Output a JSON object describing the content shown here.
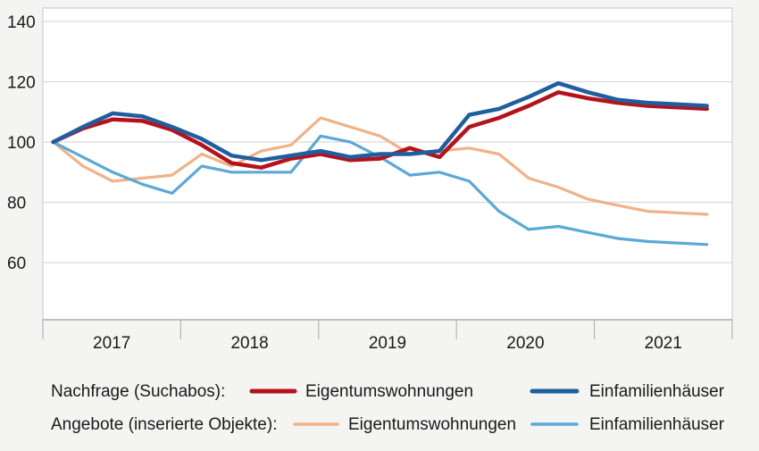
{
  "chart_data": {
    "type": "line",
    "title": "",
    "xlabel": "",
    "ylabel": "",
    "ylim": [
      40,
      145
    ],
    "yticks": [
      60,
      80,
      100,
      120,
      140
    ],
    "categories": [
      "2017",
      "2018",
      "2019",
      "2020",
      "2021"
    ],
    "grid": "horizontal",
    "legend_position": "bottom",
    "legend_groups": [
      {
        "label": "Nachfrage (Suchabos):",
        "series": [
          "nachfrage_etw",
          "nachfrage_efh"
        ]
      },
      {
        "label": "Angebote (inserierte Objekte):",
        "series": [
          "angebot_etw",
          "angebot_efh"
        ]
      }
    ],
    "series": [
      {
        "id": "angebot_etw",
        "name": "Eigentumswohnungen",
        "group": "Angebote (inserierte Objekte):",
        "color": "#f0b287",
        "x": [
          2017.0,
          2017.2,
          2017.4,
          2017.6,
          2017.8,
          2018.0,
          2018.2,
          2018.4,
          2018.6,
          2018.8,
          2019.0,
          2019.2,
          2019.4,
          2019.6,
          2019.8,
          2020.0,
          2020.2,
          2020.4,
          2020.6,
          2020.8,
          2021.0,
          2021.2,
          2021.4
        ],
        "values": [
          100,
          92,
          87,
          88,
          89,
          96,
          92,
          97,
          99,
          108,
          105,
          102,
          96,
          97,
          98,
          96,
          88,
          85,
          81,
          79,
          77,
          76.5,
          76
        ]
      },
      {
        "id": "angebot_efh",
        "name": "Einfamilienhäuser",
        "group": "Angebote (inserierte Objekte):",
        "color": "#5aa9d6",
        "x": [
          2017.0,
          2017.2,
          2017.4,
          2017.6,
          2017.8,
          2018.0,
          2018.2,
          2018.4,
          2018.6,
          2018.8,
          2019.0,
          2019.2,
          2019.4,
          2019.6,
          2019.8,
          2020.0,
          2020.2,
          2020.4,
          2020.6,
          2020.8,
          2021.0,
          2021.2,
          2021.4
        ],
        "values": [
          100,
          95,
          90,
          86,
          83,
          92,
          90,
          90,
          90,
          102,
          100,
          95,
          89,
          90,
          87,
          77,
          71,
          72,
          70,
          68,
          67,
          66.5,
          66
        ]
      },
      {
        "id": "nachfrage_etw",
        "name": "Eigentumswohnungen",
        "group": "Nachfrage (Suchabos):",
        "color": "#b5121b",
        "x": [
          2017.0,
          2017.2,
          2017.4,
          2017.6,
          2017.8,
          2018.0,
          2018.2,
          2018.4,
          2018.6,
          2018.8,
          2019.0,
          2019.2,
          2019.4,
          2019.6,
          2019.8,
          2020.0,
          2020.2,
          2020.4,
          2020.6,
          2020.8,
          2021.0,
          2021.2,
          2021.4
        ],
        "values": [
          100,
          104.5,
          107.5,
          107,
          104,
          99,
          93,
          91.5,
          94.5,
          96,
          94,
          94.5,
          98,
          95,
          105,
          108,
          112,
          116.5,
          114.5,
          113,
          112,
          111.5,
          111
        ]
      },
      {
        "id": "nachfrage_efh",
        "name": "Einfamilienhäuser",
        "group": "Nachfrage (Suchabos):",
        "color": "#1f5f9f",
        "x": [
          2017.0,
          2017.2,
          2017.4,
          2017.6,
          2017.8,
          2018.0,
          2018.2,
          2018.4,
          2018.6,
          2018.8,
          2019.0,
          2019.2,
          2019.4,
          2019.6,
          2019.8,
          2020.0,
          2020.2,
          2020.4,
          2020.6,
          2020.8,
          2021.0,
          2021.2,
          2021.4
        ],
        "values": [
          100,
          105,
          109.5,
          108.5,
          105,
          101,
          95.5,
          94,
          95.5,
          97,
          95,
          96,
          96,
          97,
          109,
          111,
          115,
          119.5,
          116.5,
          114,
          113,
          112.5,
          112
        ]
      }
    ]
  }
}
